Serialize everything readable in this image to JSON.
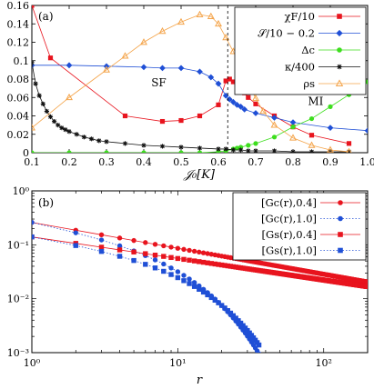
{
  "chart_data": [
    {
      "type": "line",
      "panel": "(a)",
      "xlabel": "𝒥₀[K]",
      "ylabel": "",
      "xlim": [
        0.1,
        1.0
      ],
      "ylim": [
        0,
        0.16
      ],
      "x_ticks": [
        0.1,
        0.2,
        0.3,
        0.4,
        0.5,
        0.6,
        0.7,
        0.8,
        0.9,
        1.0
      ],
      "x_tick_labels": [
        "0.1",
        "0.2",
        "0.3",
        "0.4",
        "0.5",
        "0.6",
        "0.7",
        "0.8",
        "0.9",
        "1.0"
      ],
      "y_ticks": [
        0,
        0.02,
        0.04,
        0.06,
        0.08,
        0.1,
        0.12,
        0.14,
        0.16
      ],
      "y_tick_labels": [
        "0",
        "0.02",
        "0.04",
        "0.06",
        "0.08",
        "0.1",
        "0.12",
        "0.14",
        "0.16"
      ],
      "grid": false,
      "legend_position": "top-right",
      "annotations": [
        {
          "text": "SF",
          "x": 0.42,
          "y": 0.072
        },
        {
          "text": "MI",
          "x": 0.84,
          "y": 0.052
        }
      ],
      "vline": 0.625,
      "series": [
        {
          "name": "χF/10",
          "color": "#e8141e",
          "marker": "square",
          "x": [
            0.1,
            0.15,
            0.35,
            0.45,
            0.5,
            0.55,
            0.6,
            0.62,
            0.63,
            0.64,
            0.65,
            0.66,
            0.67,
            0.68,
            0.7,
            0.75,
            0.8,
            0.85,
            0.95
          ],
          "y": [
            0.16,
            0.103,
            0.04,
            0.034,
            0.035,
            0.04,
            0.052,
            0.078,
            0.08,
            0.077,
            0.074,
            0.07,
            0.065,
            0.06,
            0.053,
            0.04,
            0.028,
            0.019,
            0.01
          ]
        },
        {
          "name": "𝒮/10 − 0.2",
          "color": "#1f4fd6",
          "marker": "diamond",
          "x": [
            0.1,
            0.2,
            0.3,
            0.4,
            0.45,
            0.5,
            0.55,
            0.58,
            0.6,
            0.62,
            0.63,
            0.64,
            0.65,
            0.66,
            0.67,
            0.7,
            0.75,
            0.8,
            0.9,
            1.0
          ],
          "y": [
            0.095,
            0.095,
            0.094,
            0.093,
            0.092,
            0.092,
            0.088,
            0.082,
            0.075,
            0.062,
            0.058,
            0.055,
            0.052,
            0.05,
            0.047,
            0.043,
            0.038,
            0.033,
            0.027,
            0.024
          ]
        },
        {
          "name": "Δc",
          "color": "#3dde1e",
          "marker": "circle",
          "x": [
            0.1,
            0.2,
            0.3,
            0.4,
            0.5,
            0.55,
            0.6,
            0.62,
            0.64,
            0.65,
            0.66,
            0.68,
            0.7,
            0.75,
            0.8,
            0.85,
            0.9,
            0.95,
            1.0
          ],
          "y": [
            0,
            0,
            0,
            0,
            0,
            0,
            0.001,
            0.002,
            0.004,
            0.005,
            0.006,
            0.008,
            0.01,
            0.017,
            0.028,
            0.037,
            0.05,
            0.063,
            0.077
          ]
        },
        {
          "name": "κ/400",
          "color": "#111111",
          "marker": "star",
          "x": [
            0.1,
            0.11,
            0.12,
            0.13,
            0.14,
            0.15,
            0.16,
            0.17,
            0.18,
            0.19,
            0.2,
            0.22,
            0.24,
            0.26,
            0.28,
            0.3,
            0.35,
            0.4,
            0.45,
            0.5,
            0.55,
            0.6,
            0.62,
            0.64,
            0.66,
            0.68,
            0.7,
            0.75,
            0.8,
            0.85,
            0.9,
            0.95
          ],
          "y": [
            0.098,
            0.075,
            0.062,
            0.053,
            0.045,
            0.039,
            0.034,
            0.03,
            0.027,
            0.025,
            0.023,
            0.02,
            0.017,
            0.015,
            0.013,
            0.012,
            0.01,
            0.008,
            0.007,
            0.006,
            0.005,
            0.004,
            0.004,
            0.003,
            0.003,
            0.002,
            0.002,
            0.002,
            0.001,
            0.001,
            0.001,
            0.001
          ]
        },
        {
          "name": "ρs",
          "color": "#f4a44a",
          "marker": "triangle",
          "x": [
            0.1,
            0.2,
            0.3,
            0.35,
            0.4,
            0.45,
            0.5,
            0.55,
            0.58,
            0.6,
            0.62,
            0.64,
            0.66,
            0.68,
            0.7,
            0.72,
            0.75,
            0.8,
            0.85,
            0.9,
            0.95
          ],
          "y": [
            0.027,
            0.06,
            0.09,
            0.105,
            0.12,
            0.132,
            0.142,
            0.15,
            0.148,
            0.14,
            0.125,
            0.11,
            0.093,
            0.076,
            0.059,
            0.045,
            0.03,
            0.016,
            0.008,
            0.003,
            0.001
          ]
        }
      ]
    },
    {
      "type": "scatter",
      "panel": "(b)",
      "xlabel": "r",
      "ylabel": "",
      "xscale": "log",
      "yscale": "log",
      "xlim": [
        1,
        200
      ],
      "ylim": [
        0.001,
        1
      ],
      "x_ticks": [
        1,
        10,
        100
      ],
      "x_tick_labels": [
        "10⁰",
        "10¹",
        "10²"
      ],
      "y_ticks": [
        0.001,
        0.01,
        0.1,
        1
      ],
      "y_tick_labels": [
        "10⁻³",
        "10⁻²",
        "10⁻¹",
        "10⁰"
      ],
      "grid": false,
      "legend_position": "top-right",
      "series": [
        {
          "name": "[Gc(r),0.4]",
          "color": "#e8141e",
          "marker": "circle",
          "line": "solid",
          "model": {
            "type": "power",
            "a": 0.26,
            "b": 0.48
          },
          "x_range": [
            1,
            200
          ]
        },
        {
          "name": "[Gc(r),1.0]",
          "color": "#1f4fd6",
          "marker": "circle",
          "line": "dotted",
          "model": {
            "type": "exp-power",
            "a": 0.26,
            "b": 0.48,
            "xi": 9.0
          },
          "x_range": [
            1,
            42
          ]
        },
        {
          "name": "[Gs(r),0.4]",
          "color": "#e8141e",
          "marker": "square",
          "line": "solid",
          "model": {
            "type": "power",
            "a": 0.14,
            "b": 0.4
          },
          "x_range": [
            1,
            200
          ]
        },
        {
          "name": "[Gs(r),1.0]",
          "color": "#1f4fd6",
          "marker": "square",
          "line": "dotted",
          "model": {
            "type": "exp-power",
            "a": 0.14,
            "b": 0.4,
            "xi": 11.0
          },
          "x_range": [
            1,
            36
          ]
        }
      ]
    }
  ]
}
